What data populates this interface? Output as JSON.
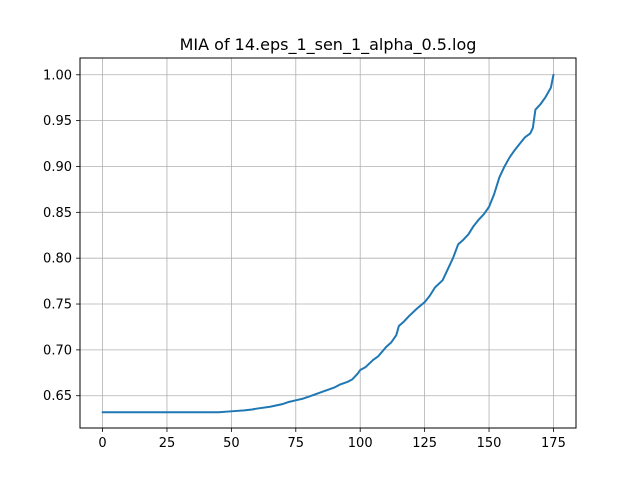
{
  "chart_data": {
    "type": "line",
    "title": "MIA of 14.eps_1_sen_1_alpha_0.5.log",
    "xlabel": "",
    "ylabel": "",
    "xlim": [
      -8.75,
      183.75
    ],
    "ylim": [
      0.6148,
      1.0183
    ],
    "xticks": [
      0,
      25,
      50,
      75,
      100,
      125,
      150,
      175
    ],
    "xtick_labels": [
      "0",
      "25",
      "50",
      "75",
      "100",
      "125",
      "150",
      "175"
    ],
    "yticks": [
      0.65,
      0.7,
      0.75,
      0.8,
      0.85,
      0.9,
      0.95,
      1.0
    ],
    "ytick_labels": [
      "0.65",
      "0.70",
      "0.75",
      "0.80",
      "0.85",
      "0.90",
      "0.95",
      "1.00"
    ],
    "grid": true,
    "series": [
      {
        "color": "#1f77b4",
        "x": [
          0,
          10,
          20,
          30,
          40,
          45,
          50,
          55,
          58,
          60,
          65,
          70,
          72,
          75,
          78,
          80,
          85,
          88,
          90,
          92,
          95,
          97,
          99,
          100,
          102,
          105,
          107,
          110,
          112,
          114,
          115,
          117,
          119,
          122,
          125,
          127,
          129,
          132,
          134,
          136,
          138,
          140,
          142,
          144,
          146,
          148,
          150,
          152,
          154,
          156,
          158,
          160,
          162,
          164,
          166,
          167,
          168,
          170,
          172,
          174,
          175
        ],
        "y": [
          0.632,
          0.632,
          0.632,
          0.632,
          0.632,
          0.632,
          0.633,
          0.634,
          0.635,
          0.636,
          0.638,
          0.641,
          0.643,
          0.645,
          0.647,
          0.649,
          0.654,
          0.657,
          0.659,
          0.662,
          0.665,
          0.668,
          0.674,
          0.678,
          0.681,
          0.689,
          0.693,
          0.703,
          0.708,
          0.716,
          0.726,
          0.731,
          0.737,
          0.745,
          0.752,
          0.759,
          0.768,
          0.776,
          0.788,
          0.8,
          0.815,
          0.82,
          0.826,
          0.835,
          0.842,
          0.848,
          0.856,
          0.87,
          0.888,
          0.9,
          0.91,
          0.918,
          0.925,
          0.932,
          0.936,
          0.942,
          0.962,
          0.968,
          0.976,
          0.986,
          1.0
        ]
      }
    ]
  }
}
